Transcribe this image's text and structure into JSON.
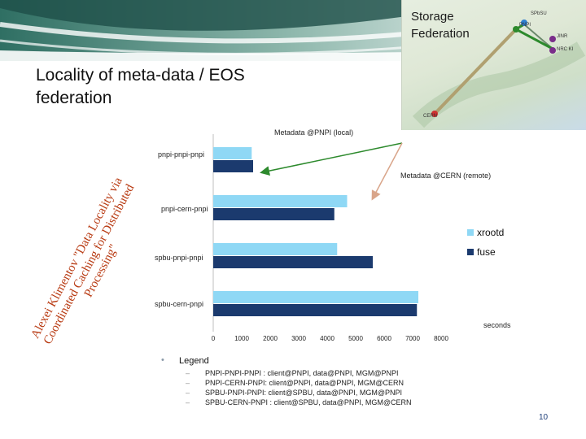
{
  "banner": {
    "map_title": "Storage\nFederation"
  },
  "map": {
    "labels": [
      "SPbSU",
      "PNPI",
      "JINR",
      "NRC KI",
      "CERN"
    ],
    "colors": {
      "accent": "#2d8a2d",
      "secondary": "#b0a070"
    }
  },
  "slide": {
    "title": "Locality of meta-data / EOS federation",
    "side_text": "Alexei Klimentov \"Data Locality via Coordinated Caching for Distributed Processing\"",
    "page_number": "10"
  },
  "chart_data": {
    "type": "bar",
    "orientation": "horizontal",
    "categories": [
      "pnpi-pnpi-pnpi",
      "pnpi-cern-pnpi",
      "spbu-pnpi-pnpi",
      "spbu-cern-pnpi"
    ],
    "series": [
      {
        "name": "xrootd",
        "color": "#8fd8f5",
        "values": [
          1350,
          4700,
          4350,
          7200
        ]
      },
      {
        "name": "fuse",
        "color": "#1b3a6e",
        "values": [
          1400,
          4250,
          5600,
          7150
        ]
      }
    ],
    "xticks": [
      "0",
      "1000",
      "2000",
      "3000",
      "4000",
      "5000",
      "6000",
      "7000",
      "8000"
    ],
    "xlim": [
      0,
      8000
    ],
    "xlabel": "seconds",
    "legend_position": "right",
    "annotations": [
      "Metadata @PNPI (local)",
      "Metadata @CERN (remote)"
    ]
  },
  "legend": {
    "bullet": "•",
    "title": "Legend",
    "items": [
      "PNPI-PNPI-PNPI : client@PNPI, data@PNPI, MGM@PNPI",
      "PNPI-CERN-PNPI: client@PNPI, data@PNPI, MGM@CERN",
      "SPBU-PNPI-PNPI: client@SPBU, data@PNPI, MGM@PNPI",
      "SPBU-CERN-PNPI : client@SPBU, data@PNPI, MGM@CERN"
    ]
  }
}
